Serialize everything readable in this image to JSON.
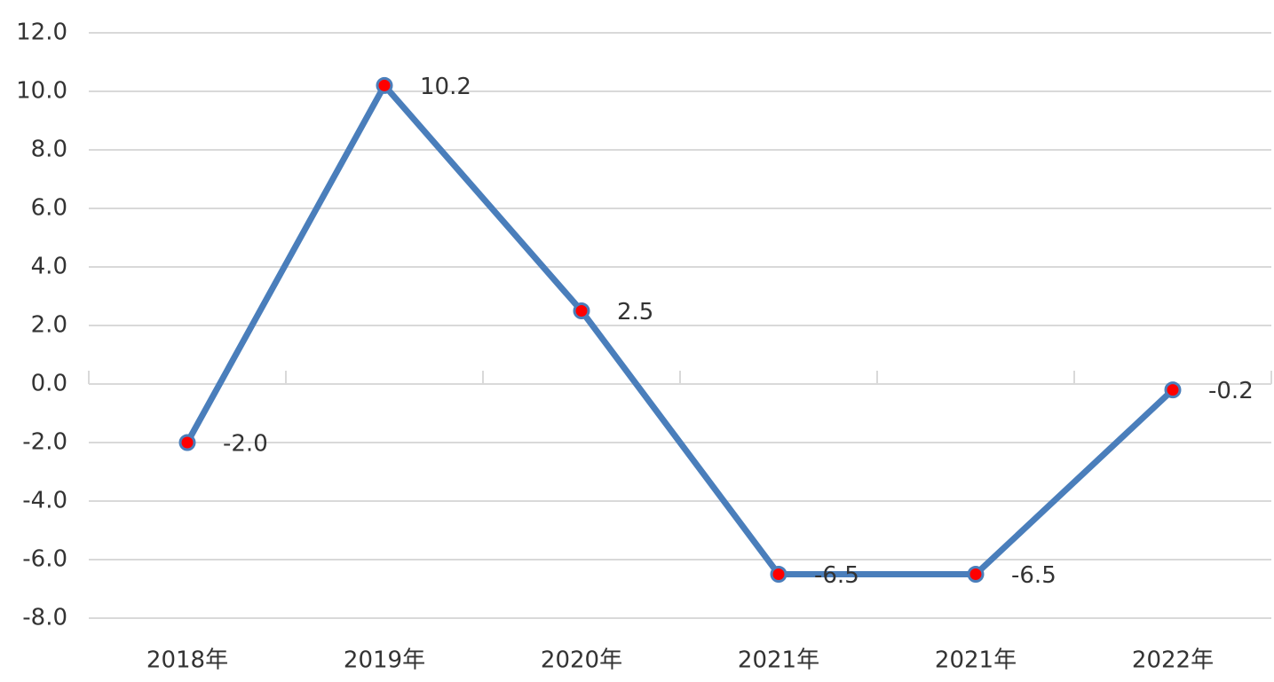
{
  "chart_data": {
    "type": "line",
    "categories": [
      "2018年",
      "2019年",
      "2020年",
      "2021年",
      "2021年",
      "2022年"
    ],
    "values": [
      -2.0,
      10.2,
      2.5,
      -6.5,
      -6.5,
      -0.2
    ],
    "value_labels": [
      "-2.0",
      "10.2",
      "2.5",
      "-6.5",
      "-6.5",
      "-0.2"
    ],
    "color": "#4a7ebb",
    "marker_color": "#ff0000",
    "ylim": [
      -8,
      12
    ],
    "yticks": [
      {
        "value": -8,
        "label": "-8.0"
      },
      {
        "value": -6,
        "label": "-6.0"
      },
      {
        "value": -4,
        "label": "-4.0"
      },
      {
        "value": -2,
        "label": "-2.0"
      },
      {
        "value": 0,
        "label": "0.0"
      },
      {
        "value": 2,
        "label": "2.0"
      },
      {
        "value": 4,
        "label": "4.0"
      },
      {
        "value": 6,
        "label": "6.0"
      },
      {
        "value": 8,
        "label": "8.0"
      },
      {
        "value": 10,
        "label": "10.0"
      },
      {
        "value": 12,
        "label": "12.0"
      }
    ],
    "grid": true
  }
}
